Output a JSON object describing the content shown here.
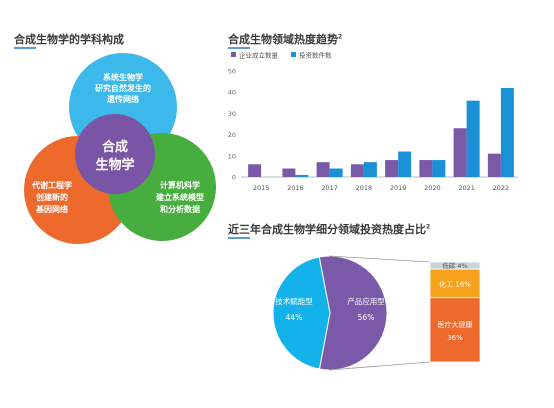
{
  "titles": {
    "composition": "合成生物学的学科构成",
    "heat_trend": "合成生物领域热度趋势",
    "heat_trend_sup": "2",
    "invest_ratio": "近三年合成生物学细分领域投资热度占比",
    "invest_ratio_sup": "2"
  },
  "venn": {
    "top": [
      "系统生物学",
      "研究自然发生的",
      "遗传网络"
    ],
    "left": [
      "代谢工程学",
      "创建新的",
      "基因网络"
    ],
    "right": [
      "计算机科学",
      "建立系统模型",
      "和分析数据"
    ],
    "center": [
      "合成",
      "生物学"
    ],
    "colors": {
      "top": "#3db8ea",
      "left": "#ee6a2c",
      "right": "#46ad3e",
      "center": "#7a55a5"
    }
  },
  "chart_data": [
    {
      "type": "bar",
      "title": "合成生物领域热度趋势",
      "categories": [
        "2015",
        "2016",
        "2017",
        "2018",
        "2019",
        "2020",
        "2021",
        "2022"
      ],
      "series": [
        {
          "name": "企业成立数量",
          "color": "#7a5aa8",
          "values": [
            6,
            4,
            7,
            6,
            8,
            8,
            23,
            11
          ]
        },
        {
          "name": "投资数件数",
          "color": "#1a90d6",
          "values": [
            0,
            1,
            4,
            7,
            12,
            8,
            36,
            42
          ]
        }
      ],
      "ylim": [
        0,
        50
      ],
      "yticks": [
        0,
        10,
        20,
        30,
        40,
        50
      ],
      "legend": "top-left",
      "grid": false
    },
    {
      "type": "pie",
      "title": "近三年合成生物学细分领域投资热度占比",
      "slices": [
        {
          "label": "产品应用型",
          "value": 56,
          "display": "56%",
          "color": "#7a5aa8"
        },
        {
          "label": "技术赋能型",
          "value": 44,
          "display": "44%",
          "color": "#13b2ea"
        }
      ],
      "breakdown": {
        "of": "产品应用型",
        "segments": [
          {
            "label": "低碳",
            "value": 4,
            "display": "4%",
            "color": "#c9d3d8"
          },
          {
            "label": "化工",
            "value": 16,
            "display": "16%",
            "color": "#f6a21e"
          },
          {
            "label": "医疗大健康",
            "value": 36,
            "display": "36%",
            "color": "#ee6a2c"
          }
        ]
      }
    }
  ]
}
